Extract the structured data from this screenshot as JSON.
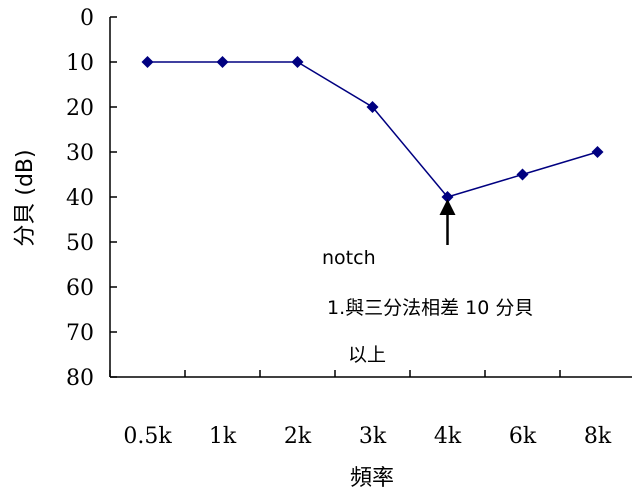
{
  "chart_data": {
    "type": "line",
    "title": "",
    "xlabel": "頻率",
    "ylabel": "分貝 (dB)",
    "categories": [
      "0.5k",
      "1k",
      "2k",
      "3k",
      "4k",
      "6k",
      "8k"
    ],
    "series": [
      {
        "values": [
          10,
          10,
          10,
          20,
          40,
          35,
          30
        ]
      }
    ],
    "y_ticks": [
      "0",
      "10",
      "20",
      "30",
      "40",
      "50",
      "60",
      "70",
      "80"
    ],
    "ylim": [
      0,
      80
    ],
    "y_inverted": true,
    "grid": false,
    "legend": "none",
    "series_color": "#000080",
    "marker": "diamond",
    "annotations": {
      "arrow_target": "4k",
      "line1": "notch",
      "line2": "1.與三分法相差 10 分貝",
      "line3": "以上"
    }
  }
}
